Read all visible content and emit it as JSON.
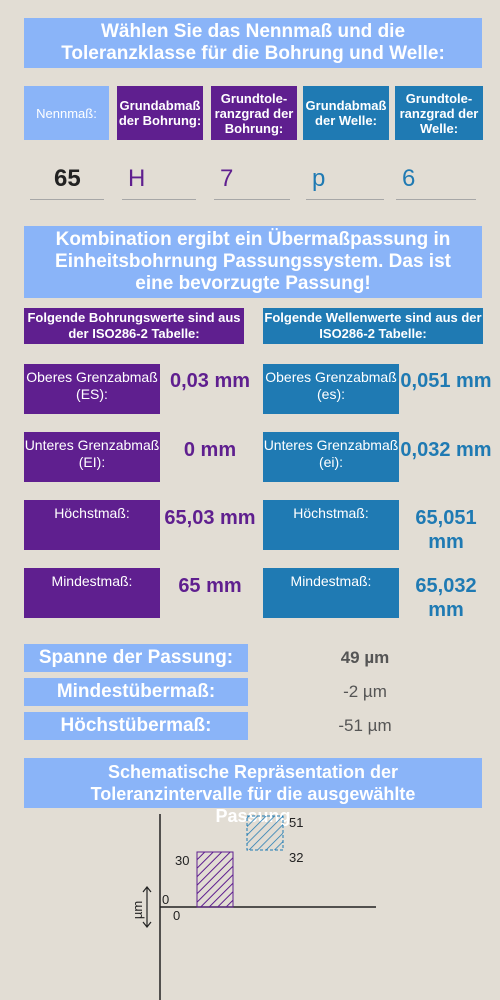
{
  "title": "Wählen Sie das Nennmaß und die Toleranzklasse für die Bohrung und Welle:",
  "headers": {
    "nennmass": "Nennmaß:",
    "grundabmass_bohrung": "Grundabmaß der Bohrung:",
    "grundtoleranzgrad_bohrung": "Grundtole-ranzgrad der Bohrung:",
    "grundabmass_welle": "Grundabmaß der Welle:",
    "grundtoleranzgrad_welle": "Grundtole-ranzgrad der Welle:"
  },
  "inputs": {
    "nennmass": "65",
    "grundabmass_bohrung": "H",
    "grundtoleranzgrad_bohrung": "7",
    "grundabmass_welle": "p",
    "grundtoleranzgrad_welle": "6"
  },
  "result_text": "Kombination ergibt ein Übermaßpassung in Einheitsbohrnung Passungssystem. Das ist eine bevorzugte Passung!",
  "bohrung": {
    "heading": "Folgende Bohrungswerte sind aus der ISO286-2 Tabelle:",
    "es_label": "Oberes Grenzabmaß (ES):",
    "es_value": "0,03 mm",
    "ei_label": "Unteres Grenzabmaß (EI):",
    "ei_value": "0 mm",
    "max_label": "Höchstmaß:",
    "max_value": "65,03 mm",
    "min_label": "Mindestmaß:",
    "min_value": "65 mm"
  },
  "welle": {
    "heading": "Folgende Wellenwerte sind aus der ISO286-2 Tabelle:",
    "es_label": "Oberes Grenzabmaß (es):",
    "es_value": "0,051 mm",
    "ei_label": "Unteres Grenzabmaß (ei):",
    "ei_value": "0,032 mm",
    "max_label": "Höchstmaß:",
    "max_value": "65,051 mm",
    "min_label": "Mindestmaß:",
    "min_value": "65,032 mm"
  },
  "summary": {
    "spanne_label": "Spanne der Passung:",
    "spanne_value": "49 µm",
    "min_label": "Mindestübermaß:",
    "min_value": "-2 µm",
    "max_label": "Höchstübermaß:",
    "max_value": "-51 µm"
  },
  "diagram": {
    "title": "Schematische Repräsentation der Toleranzintervalle für die ausgewählte Passung",
    "unit": "µm",
    "hole_upper": "30",
    "hole_lower": "0",
    "shaft_upper": "51",
    "shaft_lower": "32",
    "zero_label": "0"
  },
  "colors": {
    "hole": "#5f1f8f",
    "shaft": "#1f7ab3",
    "banner": "#8ab4f8"
  }
}
